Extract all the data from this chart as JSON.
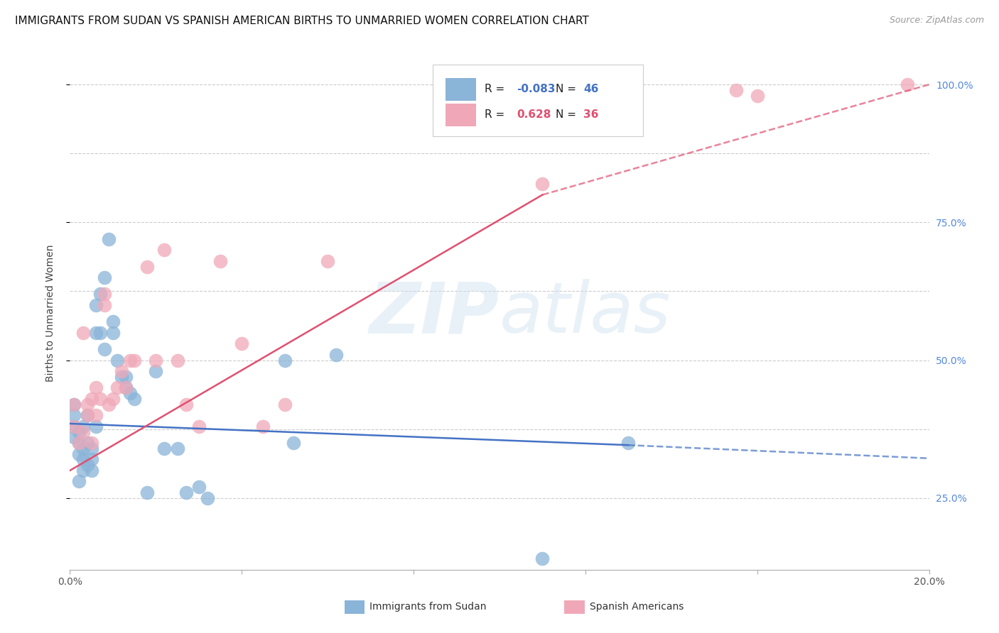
{
  "title": "IMMIGRANTS FROM SUDAN VS SPANISH AMERICAN BIRTHS TO UNMARRIED WOMEN CORRELATION CHART",
  "source": "Source: ZipAtlas.com",
  "ylabel": "Births to Unmarried Women",
  "xlim": [
    0.0,
    0.2
  ],
  "ylim": [
    0.12,
    1.05
  ],
  "r_blue": -0.083,
  "n_blue": 46,
  "r_pink": 0.628,
  "n_pink": 36,
  "blue_color": "#8ab4d8",
  "pink_color": "#f0a8b8",
  "blue_line_color": "#4472c4",
  "pink_line_color": "#e05070",
  "watermark": "ZIPatlas",
  "blue_scatter_x": [
    0.001,
    0.001,
    0.001,
    0.001,
    0.002,
    0.002,
    0.002,
    0.002,
    0.003,
    0.003,
    0.003,
    0.003,
    0.004,
    0.004,
    0.004,
    0.005,
    0.005,
    0.005,
    0.006,
    0.006,
    0.006,
    0.007,
    0.007,
    0.008,
    0.008,
    0.009,
    0.01,
    0.01,
    0.011,
    0.012,
    0.013,
    0.013,
    0.014,
    0.015,
    0.018,
    0.02,
    0.022,
    0.025,
    0.027,
    0.03,
    0.032,
    0.05,
    0.052,
    0.062,
    0.11,
    0.13
  ],
  "blue_scatter_y": [
    0.36,
    0.38,
    0.4,
    0.42,
    0.28,
    0.33,
    0.35,
    0.37,
    0.3,
    0.32,
    0.34,
    0.38,
    0.31,
    0.35,
    0.4,
    0.3,
    0.32,
    0.34,
    0.38,
    0.55,
    0.6,
    0.55,
    0.62,
    0.52,
    0.65,
    0.72,
    0.55,
    0.57,
    0.5,
    0.47,
    0.45,
    0.47,
    0.44,
    0.43,
    0.26,
    0.48,
    0.34,
    0.34,
    0.26,
    0.27,
    0.25,
    0.5,
    0.35,
    0.51,
    0.14,
    0.35
  ],
  "pink_scatter_x": [
    0.001,
    0.001,
    0.002,
    0.003,
    0.003,
    0.004,
    0.004,
    0.005,
    0.005,
    0.006,
    0.006,
    0.007,
    0.008,
    0.008,
    0.009,
    0.01,
    0.011,
    0.012,
    0.013,
    0.014,
    0.015,
    0.018,
    0.02,
    0.022,
    0.025,
    0.027,
    0.03,
    0.035,
    0.04,
    0.045,
    0.05,
    0.06,
    0.11,
    0.155,
    0.16,
    0.195
  ],
  "pink_scatter_y": [
    0.38,
    0.42,
    0.35,
    0.37,
    0.55,
    0.4,
    0.42,
    0.35,
    0.43,
    0.4,
    0.45,
    0.43,
    0.6,
    0.62,
    0.42,
    0.43,
    0.45,
    0.48,
    0.45,
    0.5,
    0.5,
    0.67,
    0.5,
    0.7,
    0.5,
    0.42,
    0.38,
    0.68,
    0.53,
    0.38,
    0.42,
    0.68,
    0.82,
    0.99,
    0.98,
    1.0
  ],
  "grid_y": [
    0.25,
    0.375,
    0.5,
    0.625,
    0.75,
    0.875,
    1.0
  ],
  "ytick_positions": [
    0.25,
    0.5,
    0.75,
    1.0
  ],
  "ytick_labels": [
    "25.0%",
    "50.0%",
    "75.0%",
    "100.0%"
  ],
  "xtick_positions": [
    0.0,
    0.04,
    0.08,
    0.12,
    0.16,
    0.2
  ],
  "xtick_labels": [
    "0.0%",
    "",
    "",
    "",
    "",
    "20.0%"
  ],
  "title_fontsize": 11,
  "tick_fontsize": 10,
  "background_color": "#ffffff",
  "grid_color": "#cccccc"
}
